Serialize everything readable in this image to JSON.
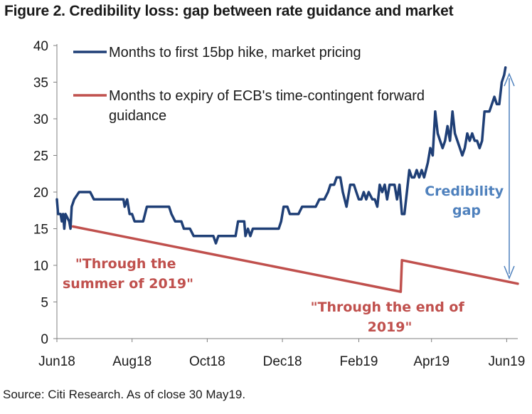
{
  "title": "Figure 2. Credibility loss: gap between rate guidance and market",
  "source": "Source: Citi Research. As of close 30 May19.",
  "colors": {
    "market": "#1f3f76",
    "guidance": "#c0504d",
    "gap_arrow": "#4f81bd",
    "gap_text": "#4f81bd"
  },
  "chart_data": {
    "type": "line",
    "x_type": "date",
    "xlim": [
      "2018-06-01",
      "2019-06-10"
    ],
    "ylim": [
      0,
      40
    ],
    "yticks": [
      0,
      5,
      10,
      15,
      20,
      25,
      30,
      35,
      40
    ],
    "xticks": [
      {
        "date": "2018-06-01",
        "label": "Jun18"
      },
      {
        "date": "2018-08-01",
        "label": "Aug18"
      },
      {
        "date": "2018-10-01",
        "label": "Oct18"
      },
      {
        "date": "2018-12-01",
        "label": "Dec18"
      },
      {
        "date": "2019-02-01",
        "label": "Feb19"
      },
      {
        "date": "2019-04-01",
        "label": "Apr19"
      },
      {
        "date": "2019-06-01",
        "label": "Jun19"
      }
    ],
    "grid": false,
    "legend": "top-left",
    "series": [
      {
        "name": "Months to first 15bp hike, market pricing",
        "points": [
          [
            "2018-06-01",
            19
          ],
          [
            "2018-06-02",
            17
          ],
          [
            "2018-06-04",
            17
          ],
          [
            "2018-06-05",
            16
          ],
          [
            "2018-06-06",
            17
          ],
          [
            "2018-06-07",
            15
          ],
          [
            "2018-06-08",
            17
          ],
          [
            "2018-06-11",
            16
          ],
          [
            "2018-06-12",
            15
          ],
          [
            "2018-06-13",
            18
          ],
          [
            "2018-06-15",
            19
          ],
          [
            "2018-06-19",
            20
          ],
          [
            "2018-06-28",
            20
          ],
          [
            "2018-07-01",
            19
          ],
          [
            "2018-07-25",
            19
          ],
          [
            "2018-07-26",
            18
          ],
          [
            "2018-07-28",
            19
          ],
          [
            "2018-07-30",
            17
          ],
          [
            "2018-08-01",
            17
          ],
          [
            "2018-08-03",
            16
          ],
          [
            "2018-08-10",
            16
          ],
          [
            "2018-08-13",
            18
          ],
          [
            "2018-08-31",
            18
          ],
          [
            "2018-09-02",
            17
          ],
          [
            "2018-09-05",
            16
          ],
          [
            "2018-09-10",
            16
          ],
          [
            "2018-09-12",
            15
          ],
          [
            "2018-09-17",
            15
          ],
          [
            "2018-09-20",
            14
          ],
          [
            "2018-10-06",
            14
          ],
          [
            "2018-10-08",
            13
          ],
          [
            "2018-10-10",
            14
          ],
          [
            "2018-10-24",
            14
          ],
          [
            "2018-10-26",
            16
          ],
          [
            "2018-10-31",
            16
          ],
          [
            "2018-11-01",
            14
          ],
          [
            "2018-11-03",
            15
          ],
          [
            "2018-11-05",
            14
          ],
          [
            "2018-11-07",
            15
          ],
          [
            "2018-11-28",
            15
          ],
          [
            "2018-11-30",
            16
          ],
          [
            "2018-12-02",
            18
          ],
          [
            "2018-12-05",
            18
          ],
          [
            "2018-12-07",
            17
          ],
          [
            "2018-12-14",
            17
          ],
          [
            "2018-12-17",
            18
          ],
          [
            "2018-12-28",
            18
          ],
          [
            "2018-12-31",
            19
          ],
          [
            "2019-01-04",
            19
          ],
          [
            "2019-01-07",
            20
          ],
          [
            "2019-01-09",
            21
          ],
          [
            "2019-01-12",
            21
          ],
          [
            "2019-01-14",
            22
          ],
          [
            "2019-01-17",
            22
          ],
          [
            "2019-01-19",
            20
          ],
          [
            "2019-01-22",
            18
          ],
          [
            "2019-01-25",
            21
          ],
          [
            "2019-01-28",
            21
          ],
          [
            "2019-01-30",
            20
          ],
          [
            "2019-02-01",
            19
          ],
          [
            "2019-02-03",
            19
          ],
          [
            "2019-02-05",
            20
          ],
          [
            "2019-02-07",
            19
          ],
          [
            "2019-02-09",
            20
          ],
          [
            "2019-02-12",
            19
          ],
          [
            "2019-02-14",
            19
          ],
          [
            "2019-02-16",
            18
          ],
          [
            "2019-02-18",
            21
          ],
          [
            "2019-02-20",
            20
          ],
          [
            "2019-02-22",
            21
          ],
          [
            "2019-02-24",
            19
          ],
          [
            "2019-02-26",
            21
          ],
          [
            "2019-03-02",
            21
          ],
          [
            "2019-03-04",
            19
          ],
          [
            "2019-03-06",
            21
          ],
          [
            "2019-03-08",
            17
          ],
          [
            "2019-03-10",
            17
          ],
          [
            "2019-03-12",
            20
          ],
          [
            "2019-03-14",
            23
          ],
          [
            "2019-03-16",
            22
          ],
          [
            "2019-03-18",
            22
          ],
          [
            "2019-03-20",
            23
          ],
          [
            "2019-03-22",
            22
          ],
          [
            "2019-03-24",
            23
          ],
          [
            "2019-03-26",
            22
          ],
          [
            "2019-03-29",
            24
          ],
          [
            "2019-03-31",
            26
          ],
          [
            "2019-04-02",
            25
          ],
          [
            "2019-04-04",
            31
          ],
          [
            "2019-04-06",
            28
          ],
          [
            "2019-04-08",
            27
          ],
          [
            "2019-04-10",
            26
          ],
          [
            "2019-04-12",
            27
          ],
          [
            "2019-04-14",
            29
          ],
          [
            "2019-04-16",
            27
          ],
          [
            "2019-04-18",
            31
          ],
          [
            "2019-04-20",
            28
          ],
          [
            "2019-04-22",
            27
          ],
          [
            "2019-04-24",
            26
          ],
          [
            "2019-04-26",
            25
          ],
          [
            "2019-04-28",
            26
          ],
          [
            "2019-04-30",
            28
          ],
          [
            "2019-05-02",
            27
          ],
          [
            "2019-05-04",
            28
          ],
          [
            "2019-05-06",
            27
          ],
          [
            "2019-05-08",
            27
          ],
          [
            "2019-05-10",
            26
          ],
          [
            "2019-05-12",
            27
          ],
          [
            "2019-05-14",
            31
          ],
          [
            "2019-05-16",
            31
          ],
          [
            "2019-05-18",
            31
          ],
          [
            "2019-05-20",
            32
          ],
          [
            "2019-05-22",
            33
          ],
          [
            "2019-05-24",
            32
          ],
          [
            "2019-05-26",
            32
          ],
          [
            "2019-05-28",
            35
          ],
          [
            "2019-05-30",
            36
          ],
          [
            "2019-05-31",
            37
          ]
        ]
      },
      {
        "name": "Months to expiry of ECB's time-contingent forward guidance",
        "points": [
          [
            "2018-06-14",
            15.3
          ],
          [
            "2019-03-07",
            6.4
          ],
          [
            "2019-03-08",
            10.7
          ],
          [
            "2019-06-10",
            7.5
          ]
        ]
      }
    ],
    "annotations": [
      {
        "text": [
          "\"Through the",
          "summer of 2019\""
        ],
        "color": "guidance"
      },
      {
        "text": [
          "\"Through the end of",
          "2019\""
        ],
        "color": "guidance"
      },
      {
        "text": [
          "Credibility",
          "gap"
        ],
        "color": "gap"
      }
    ]
  }
}
